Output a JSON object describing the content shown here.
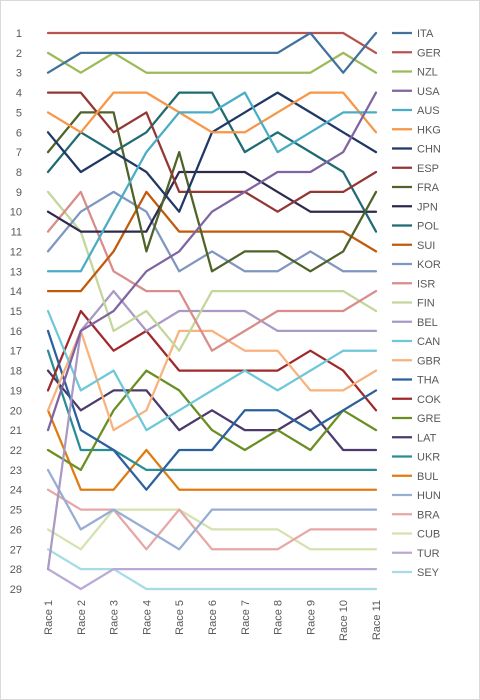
{
  "chart_data": {
    "type": "line",
    "title": "",
    "xlabel": "",
    "ylabel": "",
    "y_reversed": true,
    "ylim": [
      1,
      29
    ],
    "y_ticks": [
      1,
      2,
      3,
      4,
      5,
      6,
      7,
      8,
      9,
      10,
      11,
      12,
      13,
      14,
      15,
      16,
      17,
      18,
      19,
      20,
      21,
      22,
      23,
      24,
      25,
      26,
      27,
      28,
      29
    ],
    "categories": [
      "Race 1",
      "Race 2",
      "Race 3",
      "Race 4",
      "Race 5",
      "Race 6",
      "Race 7",
      "Race 8",
      "Race 9",
      "Race 10",
      "Race 11"
    ],
    "grid": false,
    "legend_position": "right",
    "series": [
      {
        "name": "ITA",
        "color": "#41719C",
        "values": [
          3,
          2,
          2,
          2,
          2,
          2,
          2,
          2,
          1,
          3,
          1
        ]
      },
      {
        "name": "GER",
        "color": "#B85450",
        "values": [
          1,
          1,
          1,
          1,
          1,
          1,
          1,
          1,
          1,
          1,
          2
        ]
      },
      {
        "name": "NZL",
        "color": "#9BBB59",
        "values": [
          2,
          3,
          2,
          3,
          3,
          3,
          3,
          3,
          3,
          2,
          3
        ]
      },
      {
        "name": "USA",
        "color": "#8064A2",
        "values": [
          21,
          16,
          15,
          13,
          12,
          10,
          9,
          8,
          8,
          7,
          4
        ]
      },
      {
        "name": "AUS",
        "color": "#4BACC6",
        "values": [
          13,
          13,
          10,
          7,
          5,
          5,
          4,
          7,
          6,
          5,
          5
        ]
      },
      {
        "name": "HKG",
        "color": "#F79646",
        "values": [
          5,
          6,
          4,
          4,
          5,
          6,
          6,
          5,
          4,
          4,
          6
        ]
      },
      {
        "name": "CHN",
        "color": "#1F3864",
        "values": [
          6,
          8,
          7,
          8,
          10,
          6,
          5,
          4,
          5,
          6,
          7
        ]
      },
      {
        "name": "ESP",
        "color": "#943634",
        "values": [
          4,
          4,
          6,
          5,
          9,
          9,
          9,
          10,
          9,
          9,
          8
        ]
      },
      {
        "name": "FRA",
        "color": "#4F6228",
        "values": [
          7,
          5,
          5,
          12,
          7,
          13,
          12,
          12,
          13,
          12,
          9
        ]
      },
      {
        "name": "JPN",
        "color": "#2E2A4F",
        "values": [
          10,
          11,
          11,
          11,
          8,
          8,
          8,
          9,
          10,
          10,
          10
        ]
      },
      {
        "name": "POL",
        "color": "#1E6B72",
        "values": [
          8,
          6,
          7,
          6,
          4,
          4,
          7,
          6,
          7,
          8,
          11
        ]
      },
      {
        "name": "SUI",
        "color": "#C05A0C",
        "values": [
          14,
          14,
          12,
          9,
          11,
          11,
          11,
          11,
          11,
          11,
          12
        ]
      },
      {
        "name": "KOR",
        "color": "#7F96C0",
        "values": [
          12,
          10,
          9,
          10,
          13,
          12,
          13,
          13,
          12,
          13,
          13
        ]
      },
      {
        "name": "ISR",
        "color": "#D98C8A",
        "values": [
          11,
          9,
          13,
          14,
          14,
          17,
          16,
          15,
          15,
          15,
          14
        ]
      },
      {
        "name": "FIN",
        "color": "#C3D69B",
        "values": [
          9,
          11,
          16,
          15,
          17,
          14,
          14,
          14,
          14,
          14,
          15
        ]
      },
      {
        "name": "BEL",
        "color": "#A999C5",
        "values": [
          28,
          16,
          14,
          16,
          15,
          15,
          15,
          16,
          16,
          16,
          16
        ]
      },
      {
        "name": "CAN",
        "color": "#6FC8D8",
        "values": [
          15,
          19,
          18,
          21,
          20,
          19,
          18,
          19,
          18,
          17,
          17
        ]
      },
      {
        "name": "GBR",
        "color": "#F9B27D",
        "values": [
          20,
          16,
          21,
          20,
          16,
          16,
          17,
          17,
          19,
          19,
          18
        ]
      },
      {
        "name": "THA",
        "color": "#2B5F9E",
        "values": [
          16,
          21,
          22,
          24,
          22,
          22,
          20,
          20,
          21,
          20,
          19
        ]
      },
      {
        "name": "COK",
        "color": "#A0282B",
        "values": [
          19,
          15,
          17,
          16,
          18,
          18,
          18,
          18,
          17,
          18,
          20
        ]
      },
      {
        "name": "GRE",
        "color": "#6B8E23",
        "values": [
          22,
          23,
          20,
          18,
          19,
          21,
          22,
          21,
          22,
          20,
          21
        ]
      },
      {
        "name": "LAT",
        "color": "#4B3A6B",
        "values": [
          18,
          20,
          19,
          19,
          21,
          20,
          21,
          21,
          20,
          22,
          22
        ]
      },
      {
        "name": "UKR",
        "color": "#2A8C96",
        "values": [
          17,
          22,
          22,
          23,
          23,
          23,
          23,
          23,
          23,
          23,
          23
        ]
      },
      {
        "name": "BUL",
        "color": "#E07B0F",
        "values": [
          20,
          24,
          24,
          22,
          24,
          24,
          24,
          24,
          24,
          24,
          24
        ]
      },
      {
        "name": "HUN",
        "color": "#97AED4",
        "values": [
          23,
          26,
          25,
          26,
          27,
          25,
          25,
          25,
          25,
          25,
          25
        ]
      },
      {
        "name": "BRA",
        "color": "#E6A7A5",
        "values": [
          24,
          25,
          25,
          27,
          25,
          27,
          27,
          27,
          26,
          26,
          26
        ]
      },
      {
        "name": "CUB",
        "color": "#D4E2B0",
        "values": [
          26,
          27,
          25,
          25,
          25,
          26,
          26,
          26,
          27,
          27,
          27
        ]
      },
      {
        "name": "TUR",
        "color": "#B9A9D4",
        "values": [
          28,
          29,
          28,
          28,
          28,
          28,
          28,
          28,
          28,
          28,
          28
        ]
      },
      {
        "name": "SEY",
        "color": "#A5DCE6",
        "values": [
          27,
          28,
          28,
          29,
          29,
          29,
          29,
          29,
          29,
          29,
          29
        ]
      }
    ]
  }
}
